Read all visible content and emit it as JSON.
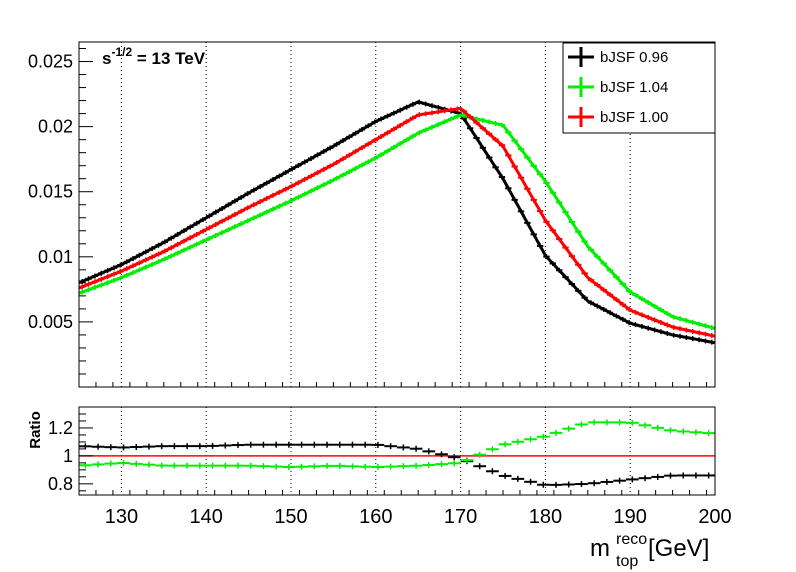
{
  "chart_data": [
    {
      "type": "line",
      "annotation": {
        "base": "s",
        "exp": "-1/2",
        "rest": " = 13 TeV"
      },
      "xlim": [
        125,
        200
      ],
      "ylim": [
        0,
        0.0265
      ],
      "grid": "vertical",
      "legend_position": "top-right",
      "ytick_labels": [
        "0.005",
        "0.01",
        "0.015",
        "0.02",
        "0.025"
      ],
      "x": [
        125,
        130,
        135,
        140,
        145,
        150,
        155,
        160,
        165,
        170,
        175,
        180,
        185,
        190,
        195,
        200
      ],
      "series": [
        {
          "name": "bJSF 0.96",
          "color": "#000000",
          "values": [
            0.008,
            0.0094,
            0.0111,
            0.013,
            0.0149,
            0.0167,
            0.0185,
            0.0204,
            0.0219,
            0.021,
            0.016,
            0.0101,
            0.0066,
            0.0049,
            0.004,
            0.0034
          ]
        },
        {
          "name": "bJSF 1.04",
          "color": "#00ee00",
          "values": [
            0.0072,
            0.0084,
            0.0098,
            0.0113,
            0.0128,
            0.0143,
            0.0159,
            0.0176,
            0.0195,
            0.0209,
            0.0201,
            0.0158,
            0.0108,
            0.0073,
            0.0054,
            0.0045
          ]
        },
        {
          "name": "bJSF 1.00",
          "color": "#ff0000",
          "values": [
            0.0076,
            0.0089,
            0.0104,
            0.0121,
            0.0138,
            0.0154,
            0.0171,
            0.019,
            0.0209,
            0.0214,
            0.0185,
            0.0128,
            0.0084,
            0.0059,
            0.0046,
            0.0039
          ]
        }
      ]
    },
    {
      "type": "scatter",
      "ylabel": "Ratio",
      "xlabel": {
        "base": "m",
        "sup": "reco",
        "sub": "top",
        "unit": "[GeV]"
      },
      "xlim": [
        125,
        200
      ],
      "ylim": [
        0.72,
        1.35
      ],
      "grid": "vertical",
      "xtick_labels": [
        "130",
        "140",
        "150",
        "160",
        "170",
        "180",
        "190",
        "200"
      ],
      "ytick_labels": [
        "0.8",
        "1",
        "1.2"
      ],
      "reference_line": {
        "y": 1,
        "color": "#ff0000"
      },
      "x": [
        125,
        130,
        135,
        140,
        145,
        150,
        155,
        160,
        165,
        170,
        175,
        180,
        185,
        190,
        195,
        200
      ],
      "series": [
        {
          "name": "bJSF 0.96",
          "color": "#000000",
          "values": [
            1.07,
            1.06,
            1.07,
            1.07,
            1.08,
            1.08,
            1.08,
            1.08,
            1.05,
            0.98,
            0.86,
            0.79,
            0.8,
            0.83,
            0.86,
            0.86
          ]
        },
        {
          "name": "bJSF 1.04",
          "color": "#00ee00",
          "values": [
            0.93,
            0.95,
            0.93,
            0.93,
            0.93,
            0.92,
            0.93,
            0.92,
            0.93,
            0.95,
            1.08,
            1.14,
            1.24,
            1.24,
            1.18,
            1.16
          ]
        }
      ]
    }
  ]
}
